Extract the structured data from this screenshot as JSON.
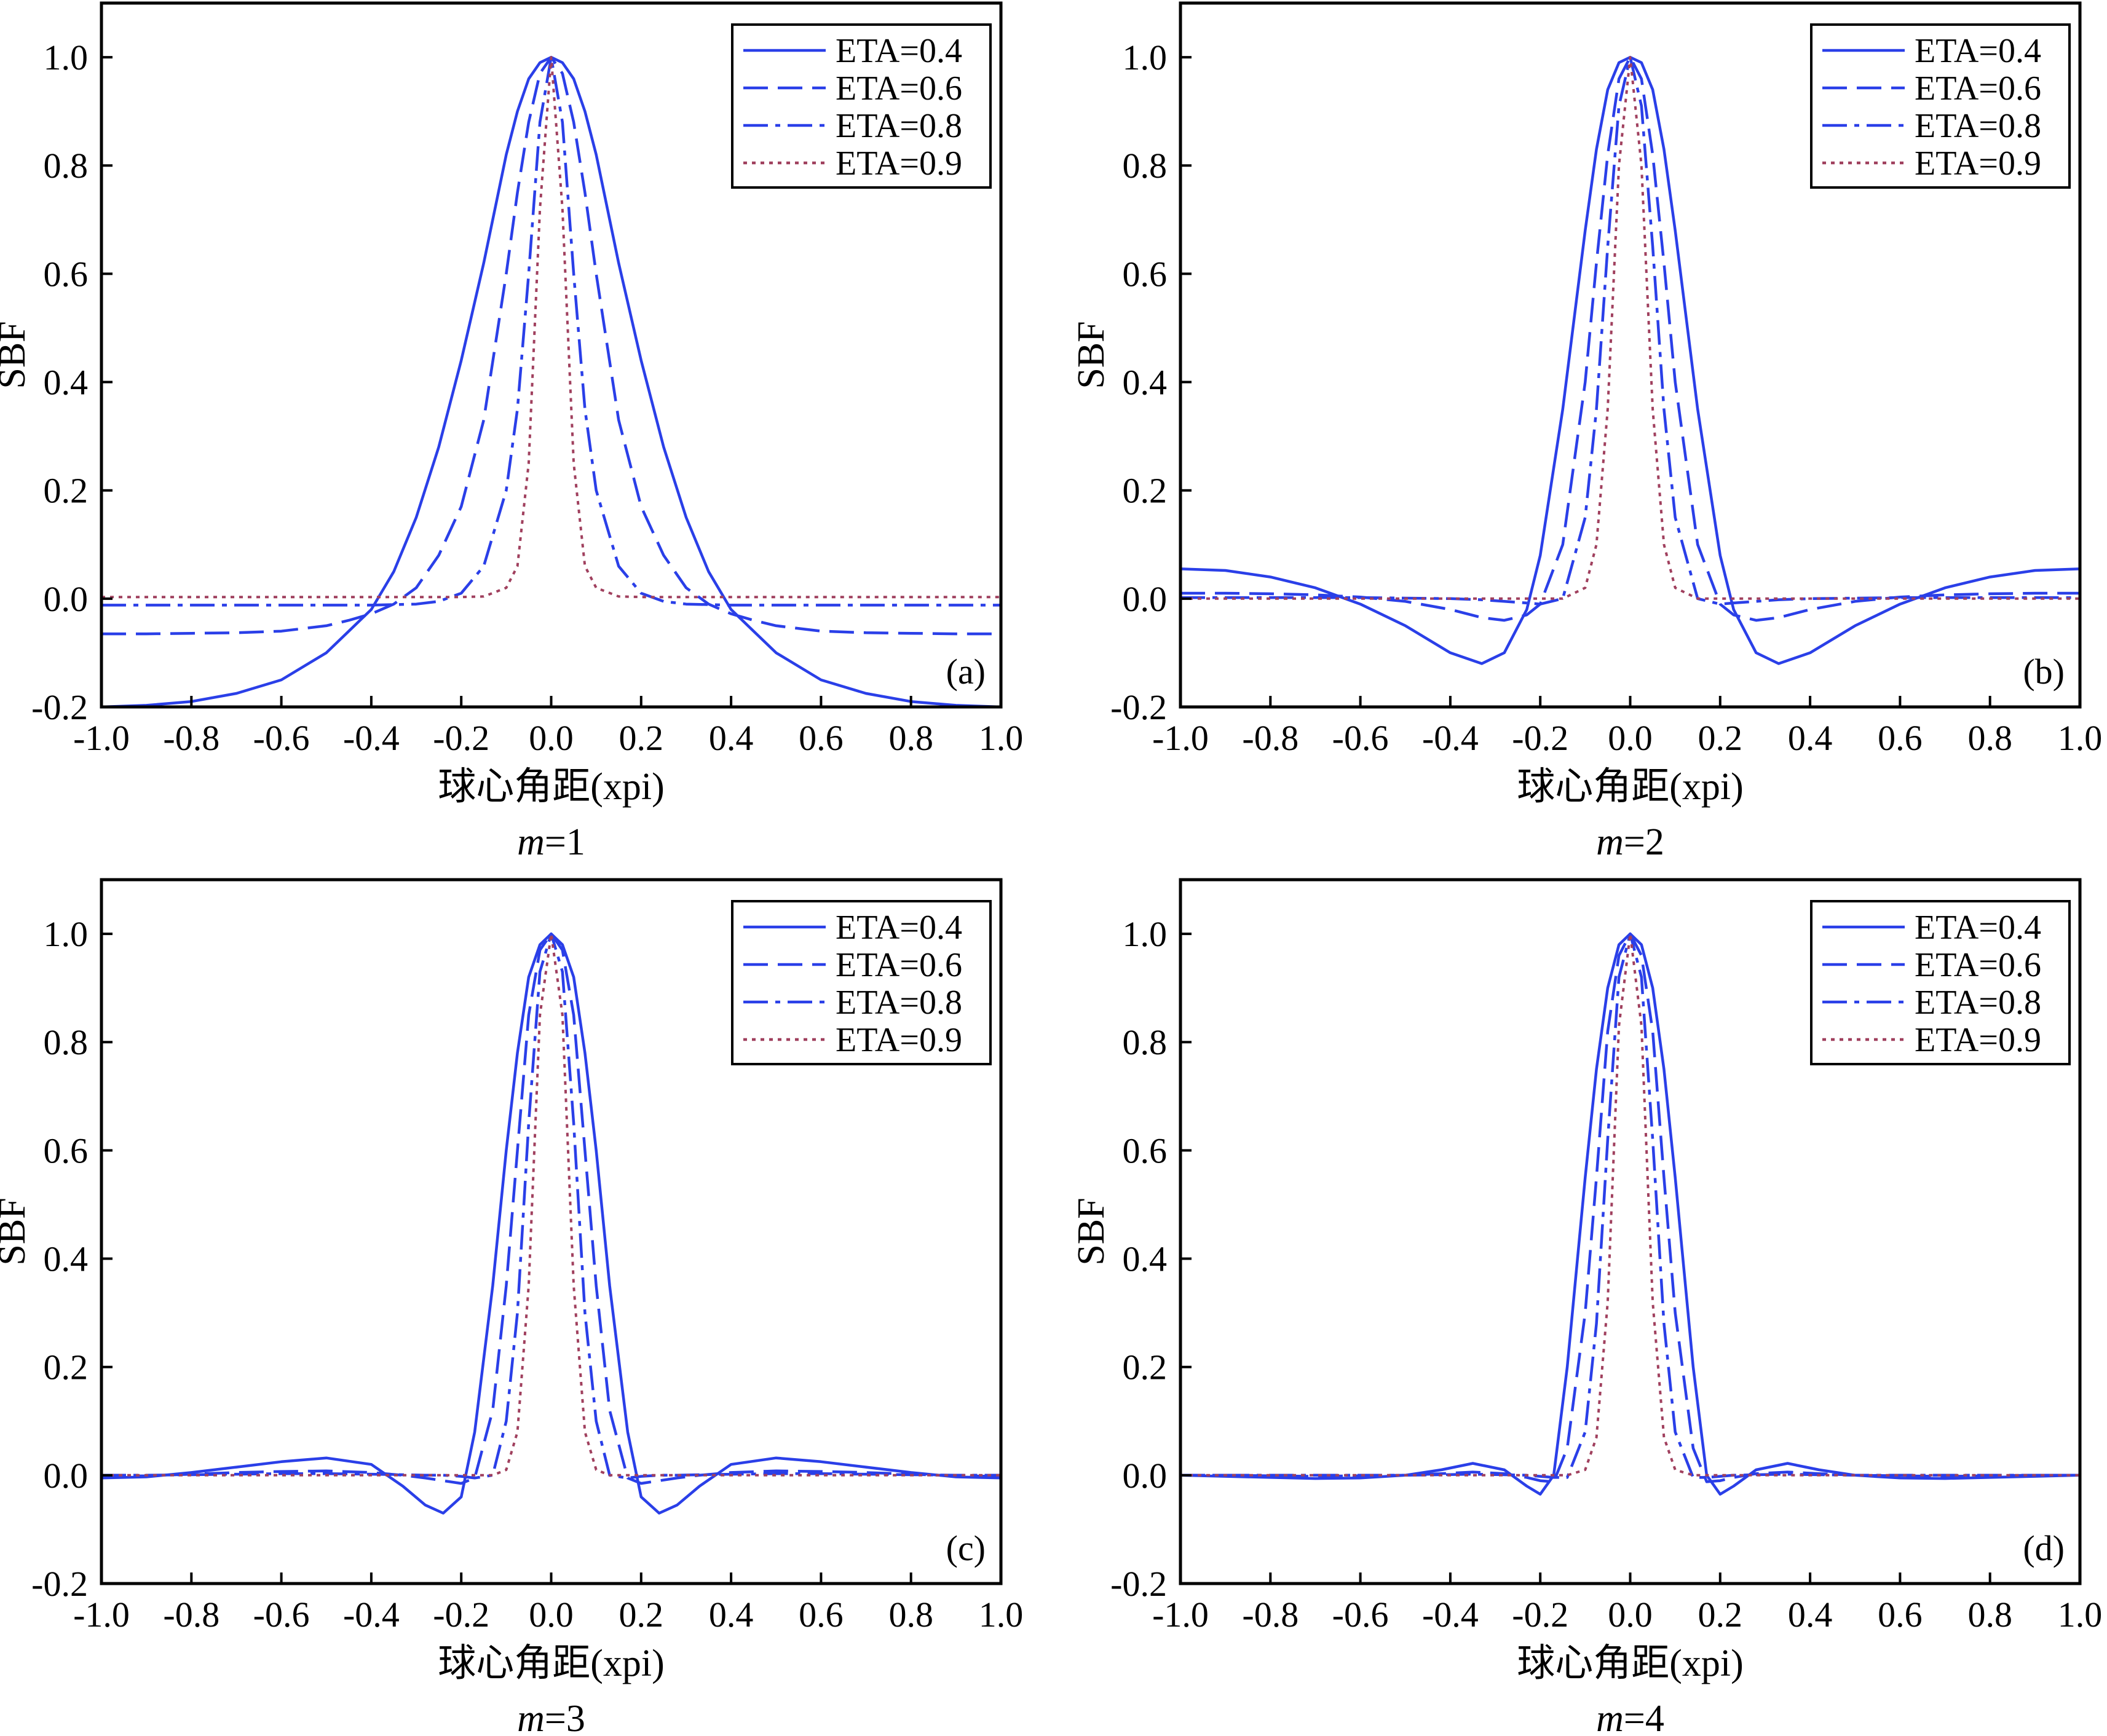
{
  "styles": {
    "series_color": "#2a3fe8",
    "dotted_color": "#a0405e",
    "dash_patterns": [
      "",
      "40,16",
      "40,12,8,12",
      "6,8"
    ]
  },
  "chart_data": [
    {
      "type": "line",
      "panel_label": "(a)",
      "caption_var": "m",
      "caption_value": "=1",
      "xlabel": "球心角距(xpi)",
      "ylabel": "SBF",
      "xlim": [
        -1.0,
        1.0
      ],
      "ylim": [
        -0.2,
        1.1
      ],
      "xticks": [
        "-1.0",
        "-0.8",
        "-0.6",
        "-0.4",
        "-0.2",
        "0.0",
        "0.2",
        "0.4",
        "0.6",
        "0.8",
        "1.0"
      ],
      "yticks": [
        "-0.2",
        "0.0",
        "0.2",
        "0.4",
        "0.6",
        "0.8",
        "1.0"
      ],
      "legend_position": "top-right",
      "x": [
        -1.0,
        -0.9,
        -0.8,
        -0.7,
        -0.6,
        -0.5,
        -0.45,
        -0.4,
        -0.35,
        -0.3,
        -0.25,
        -0.2,
        -0.15,
        -0.1,
        -0.075,
        -0.05,
        -0.025,
        0.0,
        0.025,
        0.05,
        0.075,
        0.1,
        0.15,
        0.2,
        0.25,
        0.3,
        0.35,
        0.4,
        0.45,
        0.5,
        0.6,
        0.7,
        0.8,
        0.9,
        1.0
      ],
      "series": [
        {
          "name": "ETA=0.4",
          "values": [
            -0.2,
            -0.197,
            -0.19,
            -0.175,
            -0.15,
            -0.1,
            -0.06,
            -0.02,
            0.05,
            0.15,
            0.28,
            0.44,
            0.62,
            0.82,
            0.9,
            0.96,
            0.99,
            1.0,
            0.99,
            0.96,
            0.9,
            0.82,
            0.62,
            0.44,
            0.28,
            0.15,
            0.05,
            -0.02,
            -0.06,
            -0.1,
            -0.15,
            -0.175,
            -0.19,
            -0.197,
            -0.2
          ]
        },
        {
          "name": "ETA=0.6",
          "values": [
            -0.065,
            -0.065,
            -0.064,
            -0.063,
            -0.06,
            -0.05,
            -0.04,
            -0.028,
            -0.01,
            0.02,
            0.08,
            0.17,
            0.33,
            0.6,
            0.75,
            0.88,
            0.97,
            1.0,
            0.97,
            0.88,
            0.75,
            0.6,
            0.33,
            0.17,
            0.08,
            0.02,
            -0.01,
            -0.028,
            -0.04,
            -0.05,
            -0.06,
            -0.063,
            -0.064,
            -0.065,
            -0.065
          ]
        },
        {
          "name": "ETA=0.8",
          "values": [
            -0.012,
            -0.012,
            -0.012,
            -0.012,
            -0.012,
            -0.012,
            -0.012,
            -0.012,
            -0.011,
            -0.01,
            -0.005,
            0.01,
            0.06,
            0.2,
            0.35,
            0.6,
            0.88,
            1.0,
            0.88,
            0.6,
            0.35,
            0.2,
            0.06,
            0.01,
            -0.005,
            -0.01,
            -0.011,
            -0.012,
            -0.012,
            -0.012,
            -0.012,
            -0.012,
            -0.012,
            -0.012,
            -0.012
          ]
        },
        {
          "name": "ETA=0.9",
          "values": [
            0.003,
            0.003,
            0.003,
            0.003,
            0.003,
            0.003,
            0.003,
            0.003,
            0.003,
            0.003,
            0.003,
            0.003,
            0.004,
            0.02,
            0.06,
            0.25,
            0.72,
            1.0,
            0.72,
            0.25,
            0.06,
            0.02,
            0.004,
            0.003,
            0.003,
            0.003,
            0.003,
            0.003,
            0.003,
            0.003,
            0.003,
            0.003,
            0.003,
            0.003,
            0.003
          ]
        }
      ]
    },
    {
      "type": "line",
      "panel_label": "(b)",
      "caption_var": "m",
      "caption_value": "=2",
      "xlabel": "球心角距(xpi)",
      "ylabel": "SBF",
      "xlim": [
        -1.0,
        1.0
      ],
      "ylim": [
        -0.2,
        1.1
      ],
      "xticks": [
        "-1.0",
        "-0.8",
        "-0.6",
        "-0.4",
        "-0.2",
        "0.0",
        "0.2",
        "0.4",
        "0.6",
        "0.8",
        "1.0"
      ],
      "yticks": [
        "-0.2",
        "0.0",
        "0.2",
        "0.4",
        "0.6",
        "0.8",
        "1.0"
      ],
      "legend_position": "top-right",
      "x": [
        -1.0,
        -0.9,
        -0.8,
        -0.7,
        -0.6,
        -0.5,
        -0.4,
        -0.33,
        -0.28,
        -0.23,
        -0.2,
        -0.15,
        -0.1,
        -0.075,
        -0.05,
        -0.025,
        0.0,
        0.025,
        0.05,
        0.075,
        0.1,
        0.15,
        0.2,
        0.23,
        0.28,
        0.33,
        0.4,
        0.5,
        0.6,
        0.7,
        0.8,
        0.9,
        1.0
      ],
      "series": [
        {
          "name": "ETA=0.4",
          "values": [
            0.055,
            0.052,
            0.04,
            0.02,
            -0.01,
            -0.05,
            -0.1,
            -0.12,
            -0.1,
            -0.02,
            0.08,
            0.35,
            0.68,
            0.83,
            0.94,
            0.99,
            1.0,
            0.99,
            0.94,
            0.83,
            0.68,
            0.35,
            0.08,
            -0.02,
            -0.1,
            -0.12,
            -0.1,
            -0.05,
            -0.01,
            0.02,
            0.04,
            0.052,
            0.055
          ]
        },
        {
          "name": "ETA=0.6",
          "values": [
            0.01,
            0.01,
            0.009,
            0.007,
            0.003,
            -0.005,
            -0.02,
            -0.035,
            -0.04,
            -0.03,
            -0.01,
            0.1,
            0.4,
            0.62,
            0.82,
            0.96,
            1.0,
            0.96,
            0.82,
            0.62,
            0.4,
            0.1,
            -0.01,
            -0.03,
            -0.04,
            -0.035,
            -0.02,
            -0.005,
            0.003,
            0.007,
            0.009,
            0.01,
            0.01
          ]
        },
        {
          "name": "ETA=0.8",
          "values": [
            0.002,
            0.002,
            0.002,
            0.002,
            0.002,
            0.001,
            0.0,
            -0.002,
            -0.005,
            -0.008,
            -0.01,
            0.0,
            0.15,
            0.35,
            0.65,
            0.91,
            1.0,
            0.91,
            0.65,
            0.35,
            0.15,
            0.0,
            -0.01,
            -0.008,
            -0.005,
            -0.002,
            0.0,
            0.001,
            0.002,
            0.002,
            0.002,
            0.002,
            0.002
          ]
        },
        {
          "name": "ETA=0.9",
          "values": [
            0.0,
            0.0,
            0.0,
            0.0,
            0.0,
            0.0,
            0.0,
            0.0,
            0.0,
            0.0,
            0.0,
            0.0,
            0.02,
            0.1,
            0.35,
            0.8,
            1.0,
            0.8,
            0.35,
            0.1,
            0.02,
            0.0,
            0.0,
            0.0,
            0.0,
            0.0,
            0.0,
            0.0,
            0.0,
            0.0,
            0.0,
            0.0,
            0.0
          ]
        }
      ]
    },
    {
      "type": "line",
      "panel_label": "(c)",
      "caption_var": "m",
      "caption_value": "=3",
      "xlabel": "球心角距(xpi)",
      "ylabel": "SBF",
      "xlim": [
        -1.0,
        1.0
      ],
      "ylim": [
        -0.2,
        1.1
      ],
      "xticks": [
        "-1.0",
        "-0.8",
        "-0.6",
        "-0.4",
        "-0.2",
        "0.0",
        "0.2",
        "0.4",
        "0.6",
        "0.8",
        "1.0"
      ],
      "yticks": [
        "-0.2",
        "0.0",
        "0.2",
        "0.4",
        "0.6",
        "0.8",
        "1.0"
      ],
      "legend_position": "top-right",
      "x": [
        -1.0,
        -0.9,
        -0.8,
        -0.7,
        -0.6,
        -0.5,
        -0.4,
        -0.33,
        -0.28,
        -0.24,
        -0.2,
        -0.17,
        -0.13,
        -0.1,
        -0.075,
        -0.05,
        -0.025,
        0.0,
        0.025,
        0.05,
        0.075,
        0.1,
        0.13,
        0.17,
        0.2,
        0.24,
        0.28,
        0.33,
        0.4,
        0.5,
        0.6,
        0.7,
        0.8,
        0.9,
        1.0
      ],
      "series": [
        {
          "name": "ETA=0.4",
          "values": [
            -0.005,
            -0.003,
            0.005,
            0.015,
            0.025,
            0.032,
            0.02,
            -0.02,
            -0.055,
            -0.07,
            -0.04,
            0.08,
            0.35,
            0.6,
            0.78,
            0.92,
            0.98,
            1.0,
            0.98,
            0.92,
            0.78,
            0.6,
            0.35,
            0.08,
            -0.04,
            -0.07,
            -0.055,
            -0.02,
            0.02,
            0.032,
            0.025,
            0.015,
            0.005,
            -0.003,
            -0.005
          ]
        },
        {
          "name": "ETA=0.6",
          "values": [
            -0.002,
            -0.001,
            0.002,
            0.005,
            0.007,
            0.008,
            0.005,
            0.0,
            -0.005,
            -0.01,
            -0.015,
            -0.005,
            0.12,
            0.35,
            0.6,
            0.85,
            0.97,
            1.0,
            0.97,
            0.85,
            0.6,
            0.35,
            0.12,
            -0.005,
            -0.015,
            -0.01,
            -0.005,
            0.0,
            0.005,
            0.008,
            0.007,
            0.005,
            0.002,
            -0.001,
            -0.002
          ]
        },
        {
          "name": "ETA=0.8",
          "values": [
            0.0,
            0.0,
            0.001,
            0.002,
            0.003,
            0.003,
            0.002,
            0.001,
            0.0,
            0.0,
            -0.002,
            -0.005,
            0.0,
            0.1,
            0.3,
            0.65,
            0.93,
            1.0,
            0.93,
            0.65,
            0.3,
            0.1,
            0.0,
            -0.005,
            -0.002,
            0.0,
            0.0,
            0.001,
            0.002,
            0.003,
            0.003,
            0.002,
            0.001,
            0.0,
            0.0
          ]
        },
        {
          "name": "ETA=0.9",
          "values": [
            0.0,
            0.0,
            0.0,
            0.0,
            0.0,
            0.0,
            0.0,
            0.0,
            0.0,
            0.0,
            0.0,
            0.0,
            0.0,
            0.01,
            0.08,
            0.35,
            0.85,
            1.0,
            0.85,
            0.35,
            0.08,
            0.01,
            0.0,
            0.0,
            0.0,
            0.0,
            0.0,
            0.0,
            0.0,
            0.0,
            0.0,
            0.0,
            0.0,
            0.0,
            0.0
          ]
        }
      ]
    },
    {
      "type": "line",
      "panel_label": "(d)",
      "caption_var": "m",
      "caption_value": "=4",
      "xlabel": "球心角距(xpi)",
      "ylabel": "SBF",
      "xlim": [
        -1.0,
        1.0
      ],
      "ylim": [
        -0.2,
        1.1
      ],
      "xticks": [
        "-1.0",
        "-0.8",
        "-0.6",
        "-0.4",
        "-0.2",
        "0.0",
        "0.2",
        "0.4",
        "0.6",
        "0.8",
        "1.0"
      ],
      "yticks": [
        "-0.2",
        "0.0",
        "0.2",
        "0.4",
        "0.6",
        "0.8",
        "1.0"
      ],
      "legend_position": "top-right",
      "x": [
        -1.0,
        -0.9,
        -0.8,
        -0.7,
        -0.6,
        -0.5,
        -0.42,
        -0.35,
        -0.28,
        -0.23,
        -0.2,
        -0.17,
        -0.14,
        -0.1,
        -0.075,
        -0.05,
        -0.025,
        0.0,
        0.025,
        0.05,
        0.075,
        0.1,
        0.14,
        0.17,
        0.2,
        0.23,
        0.28,
        0.35,
        0.42,
        0.5,
        0.6,
        0.7,
        0.8,
        0.9,
        1.0
      ],
      "series": [
        {
          "name": "ETA=0.4",
          "values": [
            0.0,
            -0.002,
            -0.004,
            -0.006,
            -0.005,
            0.0,
            0.01,
            0.022,
            0.01,
            -0.02,
            -0.035,
            0.0,
            0.2,
            0.55,
            0.75,
            0.9,
            0.98,
            1.0,
            0.98,
            0.9,
            0.75,
            0.55,
            0.2,
            0.0,
            -0.035,
            -0.02,
            0.01,
            0.022,
            0.01,
            0.0,
            -0.005,
            -0.006,
            -0.004,
            -0.002,
            0.0
          ]
        },
        {
          "name": "ETA=0.6",
          "values": [
            0.0,
            0.0,
            -0.001,
            -0.002,
            -0.001,
            0.0,
            0.003,
            0.006,
            0.003,
            -0.004,
            -0.01,
            -0.012,
            0.05,
            0.3,
            0.55,
            0.82,
            0.96,
            1.0,
            0.96,
            0.82,
            0.55,
            0.3,
            0.05,
            -0.012,
            -0.01,
            -0.004,
            0.003,
            0.006,
            0.003,
            0.0,
            -0.001,
            -0.002,
            -0.001,
            0.0,
            0.0
          ]
        },
        {
          "name": "ETA=0.8",
          "values": [
            0.0,
            0.0,
            0.0,
            0.0,
            0.0,
            0.0,
            0.001,
            0.002,
            0.001,
            0.0,
            -0.002,
            -0.004,
            -0.004,
            0.08,
            0.28,
            0.62,
            0.92,
            1.0,
            0.92,
            0.62,
            0.28,
            0.08,
            -0.004,
            -0.004,
            -0.002,
            0.0,
            0.001,
            0.002,
            0.001,
            0.0,
            0.0,
            0.0,
            0.0,
            0.0,
            0.0
          ]
        },
        {
          "name": "ETA=0.9",
          "values": [
            0.0,
            0.0,
            0.0,
            0.0,
            0.0,
            0.0,
            0.0,
            0.0,
            0.0,
            0.0,
            0.0,
            0.0,
            0.0,
            0.01,
            0.07,
            0.32,
            0.83,
            1.0,
            0.83,
            0.32,
            0.07,
            0.01,
            0.0,
            0.0,
            0.0,
            0.0,
            0.0,
            0.0,
            0.0,
            0.0,
            0.0,
            0.0,
            0.0,
            0.0,
            0.0
          ]
        }
      ]
    }
  ]
}
